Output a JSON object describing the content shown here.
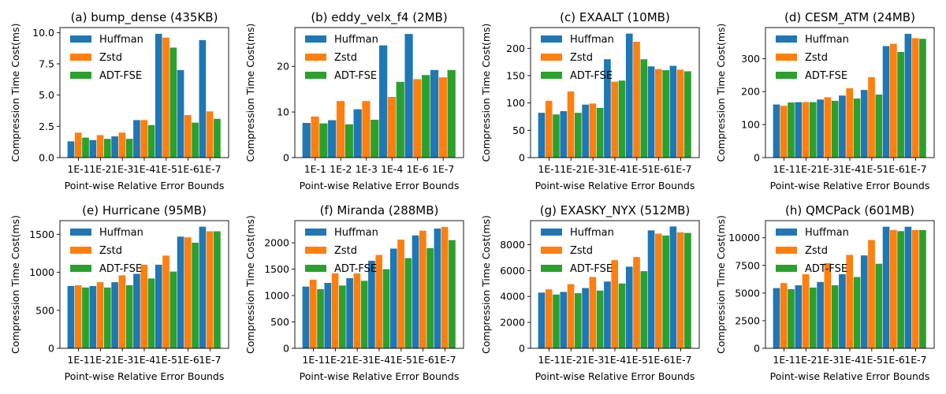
{
  "figure": {
    "series_names": [
      "Huffman",
      "Zstd",
      "ADT-FSE"
    ],
    "series_colors": [
      "#1f77b4",
      "#ff7f0e",
      "#2ca02c"
    ]
  },
  "chart_data": [
    {
      "type": "bar",
      "title": "(a) bump_dense (435KB)",
      "xlabel": "Point-wise Relative Error Bounds",
      "ylabel": "Compression Time Cost(ms)",
      "categories": [
        "1E-1",
        "1E-2",
        "1E-3",
        "1E-4",
        "1E-5",
        "1E-6",
        "1E-7"
      ],
      "ylim": [
        0,
        10.4
      ],
      "yticks": [
        0,
        2.5,
        5.0,
        7.5,
        10.0
      ],
      "ytick_labels": [
        "0.0",
        "2.5",
        "5.0",
        "7.5",
        "10.0"
      ],
      "legend": "top-left",
      "series": [
        {
          "name": "Huffman",
          "values": [
            1.3,
            1.4,
            1.7,
            3.0,
            9.9,
            7.0,
            9.4
          ]
        },
        {
          "name": "Zstd",
          "values": [
            2.0,
            1.8,
            2.0,
            3.0,
            9.6,
            3.4,
            3.7
          ]
        },
        {
          "name": "ADT-FSE",
          "values": [
            1.6,
            1.5,
            1.5,
            2.6,
            8.8,
            2.8,
            3.1
          ]
        }
      ]
    },
    {
      "type": "bar",
      "title": "(b) eddy_velx_f4 (2MB)",
      "xlabel": "Point-wise Relative Error Bounds",
      "ylabel": "Compression Time Cost(ms)",
      "categories": [
        "1E-1",
        "1E-2",
        "1E-3",
        "1E-4",
        "1E-6",
        "1E-7"
      ],
      "ylim": [
        0,
        28.5
      ],
      "yticks": [
        0,
        10,
        20
      ],
      "ytick_labels": [
        "0",
        "10",
        "20"
      ],
      "legend": "top-left",
      "series": [
        {
          "name": "Huffman",
          "values": [
            7.6,
            8.2,
            10.6,
            24.6,
            27.1,
            19.2
          ]
        },
        {
          "name": "Zstd",
          "values": [
            9.0,
            12.4,
            12.4,
            13.3,
            17.2,
            17.6
          ]
        },
        {
          "name": "ADT-FSE",
          "values": [
            7.5,
            7.3,
            8.3,
            16.6,
            18.1,
            19.2
          ]
        }
      ]
    },
    {
      "type": "bar",
      "title": "(c) EXAALT (10MB)",
      "xlabel": "Point-wise Relative Error Bounds",
      "ylabel": "Compression Time Cost(ms)",
      "categories": [
        "1E-1",
        "1E-2",
        "1E-3",
        "1E-4",
        "1E-5",
        "1E-6",
        "1E-7"
      ],
      "ylim": [
        0,
        238
      ],
      "yticks": [
        0,
        50,
        100,
        150,
        200
      ],
      "ytick_labels": [
        "0",
        "50",
        "100",
        "150",
        "200"
      ],
      "legend": "top-left",
      "series": [
        {
          "name": "Huffman",
          "values": [
            82,
            85,
            97,
            180,
            227,
            167,
            168
          ]
        },
        {
          "name": "Zstd",
          "values": [
            104,
            121,
            99,
            139,
            212,
            162,
            161
          ]
        },
        {
          "name": "ADT-FSE",
          "values": [
            79,
            82,
            91,
            141,
            180,
            160,
            158
          ]
        }
      ]
    },
    {
      "type": "bar",
      "title": "(d) CESM_ATM (24MB)",
      "xlabel": "Point-wise Relative Error Bounds",
      "ylabel": "Compression Time Cost(ms)",
      "categories": [
        "1E-1",
        "1E-2",
        "1E-3",
        "1E-4",
        "1E-5",
        "1E-6",
        "1E-7"
      ],
      "ylim": [
        0,
        394
      ],
      "yticks": [
        0,
        100,
        200,
        300
      ],
      "ytick_labels": [
        "0",
        "100",
        "200",
        "300"
      ],
      "legend": "top-left",
      "series": [
        {
          "name": "Huffman",
          "values": [
            161,
            168,
            176,
            188,
            205,
            338,
            375
          ]
        },
        {
          "name": "Zstd",
          "values": [
            157,
            168,
            183,
            210,
            244,
            345,
            362
          ]
        },
        {
          "name": "ADT-FSE",
          "values": [
            167,
            168,
            172,
            179,
            191,
            320,
            360
          ]
        }
      ]
    },
    {
      "type": "bar",
      "title": "(e) Hurricane (95MB)",
      "xlabel": "Point-wise Relative Error Bounds",
      "ylabel": "Compression Time Cost(ms)",
      "categories": [
        "1E-1",
        "1E-2",
        "1E-3",
        "1E-4",
        "1E-5",
        "1E-6",
        "1E-7"
      ],
      "ylim": [
        0,
        1680
      ],
      "yticks": [
        0,
        500,
        1000,
        1500
      ],
      "ytick_labels": [
        "0",
        "500",
        "1000",
        "1500"
      ],
      "legend": "top-left",
      "series": [
        {
          "name": "Huffman",
          "values": [
            820,
            820,
            870,
            980,
            1100,
            1470,
            1600
          ]
        },
        {
          "name": "Zstd",
          "values": [
            830,
            870,
            960,
            1100,
            1220,
            1460,
            1540
          ]
        },
        {
          "name": "ADT-FSE",
          "values": [
            800,
            800,
            830,
            920,
            1010,
            1390,
            1540
          ]
        }
      ]
    },
    {
      "type": "bar",
      "title": "(f) Miranda (288MB)",
      "xlabel": "Point-wise Relative Error Bounds",
      "ylabel": "Compression Time Cost(ms)",
      "categories": [
        "1E-1",
        "1E-2",
        "1E-3",
        "1E-4",
        "1E-5",
        "1E-6",
        "1E-7"
      ],
      "ylim": [
        0,
        2420
      ],
      "yticks": [
        0,
        500,
        1000,
        1500,
        2000
      ],
      "ytick_labels": [
        "0",
        "500",
        "1000",
        "1500",
        "2000"
      ],
      "legend": "top-left",
      "series": [
        {
          "name": "Huffman",
          "values": [
            1170,
            1240,
            1330,
            1660,
            1890,
            2140,
            2270
          ]
        },
        {
          "name": "Zstd",
          "values": [
            1300,
            1420,
            1420,
            1770,
            2060,
            2230,
            2300
          ]
        },
        {
          "name": "ADT-FSE",
          "values": [
            1120,
            1190,
            1280,
            1500,
            1710,
            1900,
            2050
          ]
        }
      ]
    },
    {
      "type": "bar",
      "title": "(g) EXASKY_NYX (512MB)",
      "xlabel": "Point-wise Relative Error Bounds",
      "ylabel": "Compression Time Cost(ms)",
      "categories": [
        "1E-1",
        "1E-2",
        "1E-3",
        "1E-4",
        "1E-5",
        "1E-6",
        "1E-7"
      ],
      "ylim": [
        0,
        9850
      ],
      "yticks": [
        0,
        2000,
        4000,
        6000,
        8000
      ],
      "ytick_labels": [
        "0",
        "2000",
        "4000",
        "6000",
        "8000"
      ],
      "legend": "top-left",
      "series": [
        {
          "name": "Huffman",
          "values": [
            4300,
            4350,
            4650,
            5150,
            6300,
            9100,
            9400
          ]
        },
        {
          "name": "Zstd",
          "values": [
            4550,
            4950,
            5500,
            6800,
            7050,
            8850,
            8950
          ]
        },
        {
          "name": "ADT-FSE",
          "values": [
            4150,
            4250,
            4450,
            5000,
            5950,
            8700,
            8900
          ]
        }
      ]
    },
    {
      "type": "bar",
      "title": "(h) QMCPack (601MB)",
      "xlabel": "Point-wise Relative Error Bounds",
      "ylabel": "Compression Time Cost(ms)",
      "categories": [
        "1E-1",
        "1E-2",
        "1E-3",
        "1E-4",
        "1E-5",
        "1E-6",
        "1E-7"
      ],
      "ylim": [
        0,
        11550
      ],
      "yticks": [
        0,
        2500,
        5000,
        7500,
        10000
      ],
      "ytick_labels": [
        "0",
        "2500",
        "5000",
        "7500",
        "10000"
      ],
      "legend": "top-left",
      "series": [
        {
          "name": "Huffman",
          "values": [
            5450,
            5700,
            6000,
            6700,
            8400,
            11000,
            11000
          ]
        },
        {
          "name": "Zstd",
          "values": [
            5900,
            6700,
            7700,
            8450,
            9800,
            10700,
            10700
          ]
        },
        {
          "name": "ADT-FSE",
          "values": [
            5350,
            5500,
            5700,
            6450,
            7650,
            10600,
            10700
          ]
        }
      ]
    }
  ]
}
